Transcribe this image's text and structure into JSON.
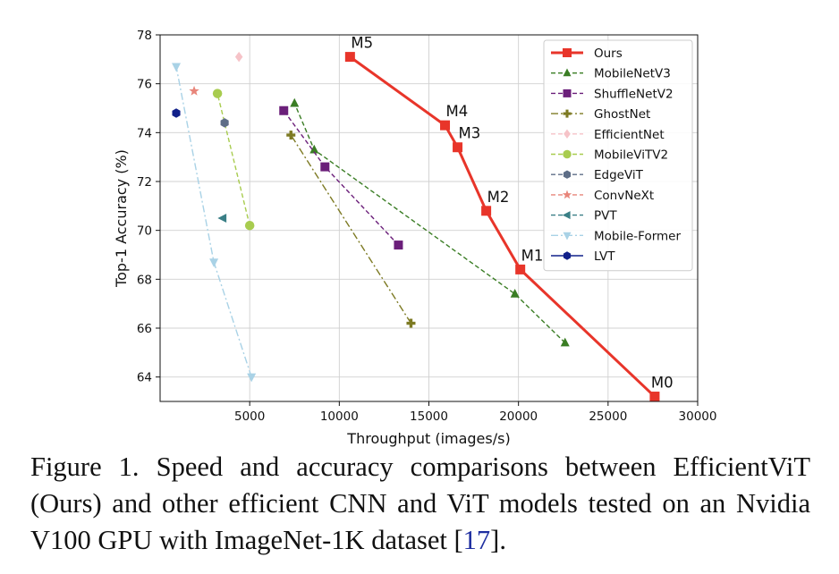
{
  "caption": {
    "text": "Figure 1. Speed and accuracy comparisons between EfficientViT (Ours) and other efficient CNN and ViT models tested on an Nvidia V100 GPU with ImageNet-1K dataset [",
    "cite": "17",
    "end": "]."
  },
  "chart_data": {
    "type": "scatter",
    "xlabel": "Throughput (images/s)",
    "ylabel": "Top-1 Accuracy (%)",
    "xlim": [
      0,
      30000
    ],
    "ylim": [
      63,
      78
    ],
    "xticks": [
      5000,
      10000,
      15000,
      20000,
      25000,
      30000
    ],
    "xtick_labels": [
      "5000",
      "10000",
      "15000",
      "20000",
      "25000",
      "30000"
    ],
    "yticks": [
      64,
      66,
      68,
      70,
      72,
      74,
      76,
      78
    ],
    "ytick_labels": [
      "64",
      "66",
      "68",
      "70",
      "72",
      "74",
      "76",
      "78"
    ],
    "grid": true,
    "legend_position": "top-right",
    "series": [
      {
        "name": "Ours",
        "color": "#e8352a",
        "marker": "square",
        "dash": "solid",
        "x": [
          27600,
          20100,
          18200,
          16600,
          15900,
          10600
        ],
        "y": [
          63.2,
          68.4,
          70.8,
          73.4,
          74.3,
          77.1
        ],
        "labels": [
          "M0",
          "M1",
          "M2",
          "M3",
          "M4",
          "M5"
        ]
      },
      {
        "name": "MobileNetV3",
        "color": "#3a7d24",
        "marker": "triangle",
        "dash": "dashed",
        "x": [
          22600,
          19800,
          8600,
          7500
        ],
        "y": [
          65.4,
          67.4,
          73.3,
          75.2
        ]
      },
      {
        "name": "ShuffleNetV2",
        "color": "#6b1f7a",
        "marker": "square",
        "dash": "dashed",
        "x": [
          13300,
          9200,
          6900
        ],
        "y": [
          69.4,
          72.6,
          74.9
        ]
      },
      {
        "name": "GhostNet",
        "color": "#7d7a23",
        "marker": "plus",
        "dash": "dashdot",
        "x": [
          14000,
          7300
        ],
        "y": [
          66.2,
          73.9
        ]
      },
      {
        "name": "EfficientNet",
        "color": "#f6c3c8",
        "marker": "diamond",
        "dash": "dashed",
        "x": [
          4400
        ],
        "y": [
          77.1
        ]
      },
      {
        "name": "MobileViTV2",
        "color": "#a8cc4f",
        "marker": "circle",
        "dash": "dashed",
        "x": [
          5000,
          3200
        ],
        "y": [
          70.2,
          75.6
        ]
      },
      {
        "name": "EdgeViT",
        "color": "#5e6e87",
        "marker": "hexagon",
        "dash": "dashed",
        "x": [
          3600
        ],
        "y": [
          74.4
        ]
      },
      {
        "name": "ConvNeXt",
        "color": "#e8857a",
        "marker": "star",
        "dash": "dashed",
        "x": [
          1900
        ],
        "y": [
          75.7
        ]
      },
      {
        "name": "PVT",
        "color": "#3a7f86",
        "marker": "triangle-left",
        "dash": "dashed",
        "x": [
          3500
        ],
        "y": [
          70.5
        ]
      },
      {
        "name": "Mobile-Former",
        "color": "#a9d2e6",
        "marker": "triangle-down",
        "dash": "dashdot",
        "x": [
          5100,
          3000,
          900
        ],
        "y": [
          64.0,
          68.7,
          76.7
        ]
      },
      {
        "name": "LVT",
        "color": "#11208a",
        "marker": "hexagon",
        "dash": "solid",
        "x": [
          900
        ],
        "y": [
          74.8
        ]
      }
    ]
  }
}
